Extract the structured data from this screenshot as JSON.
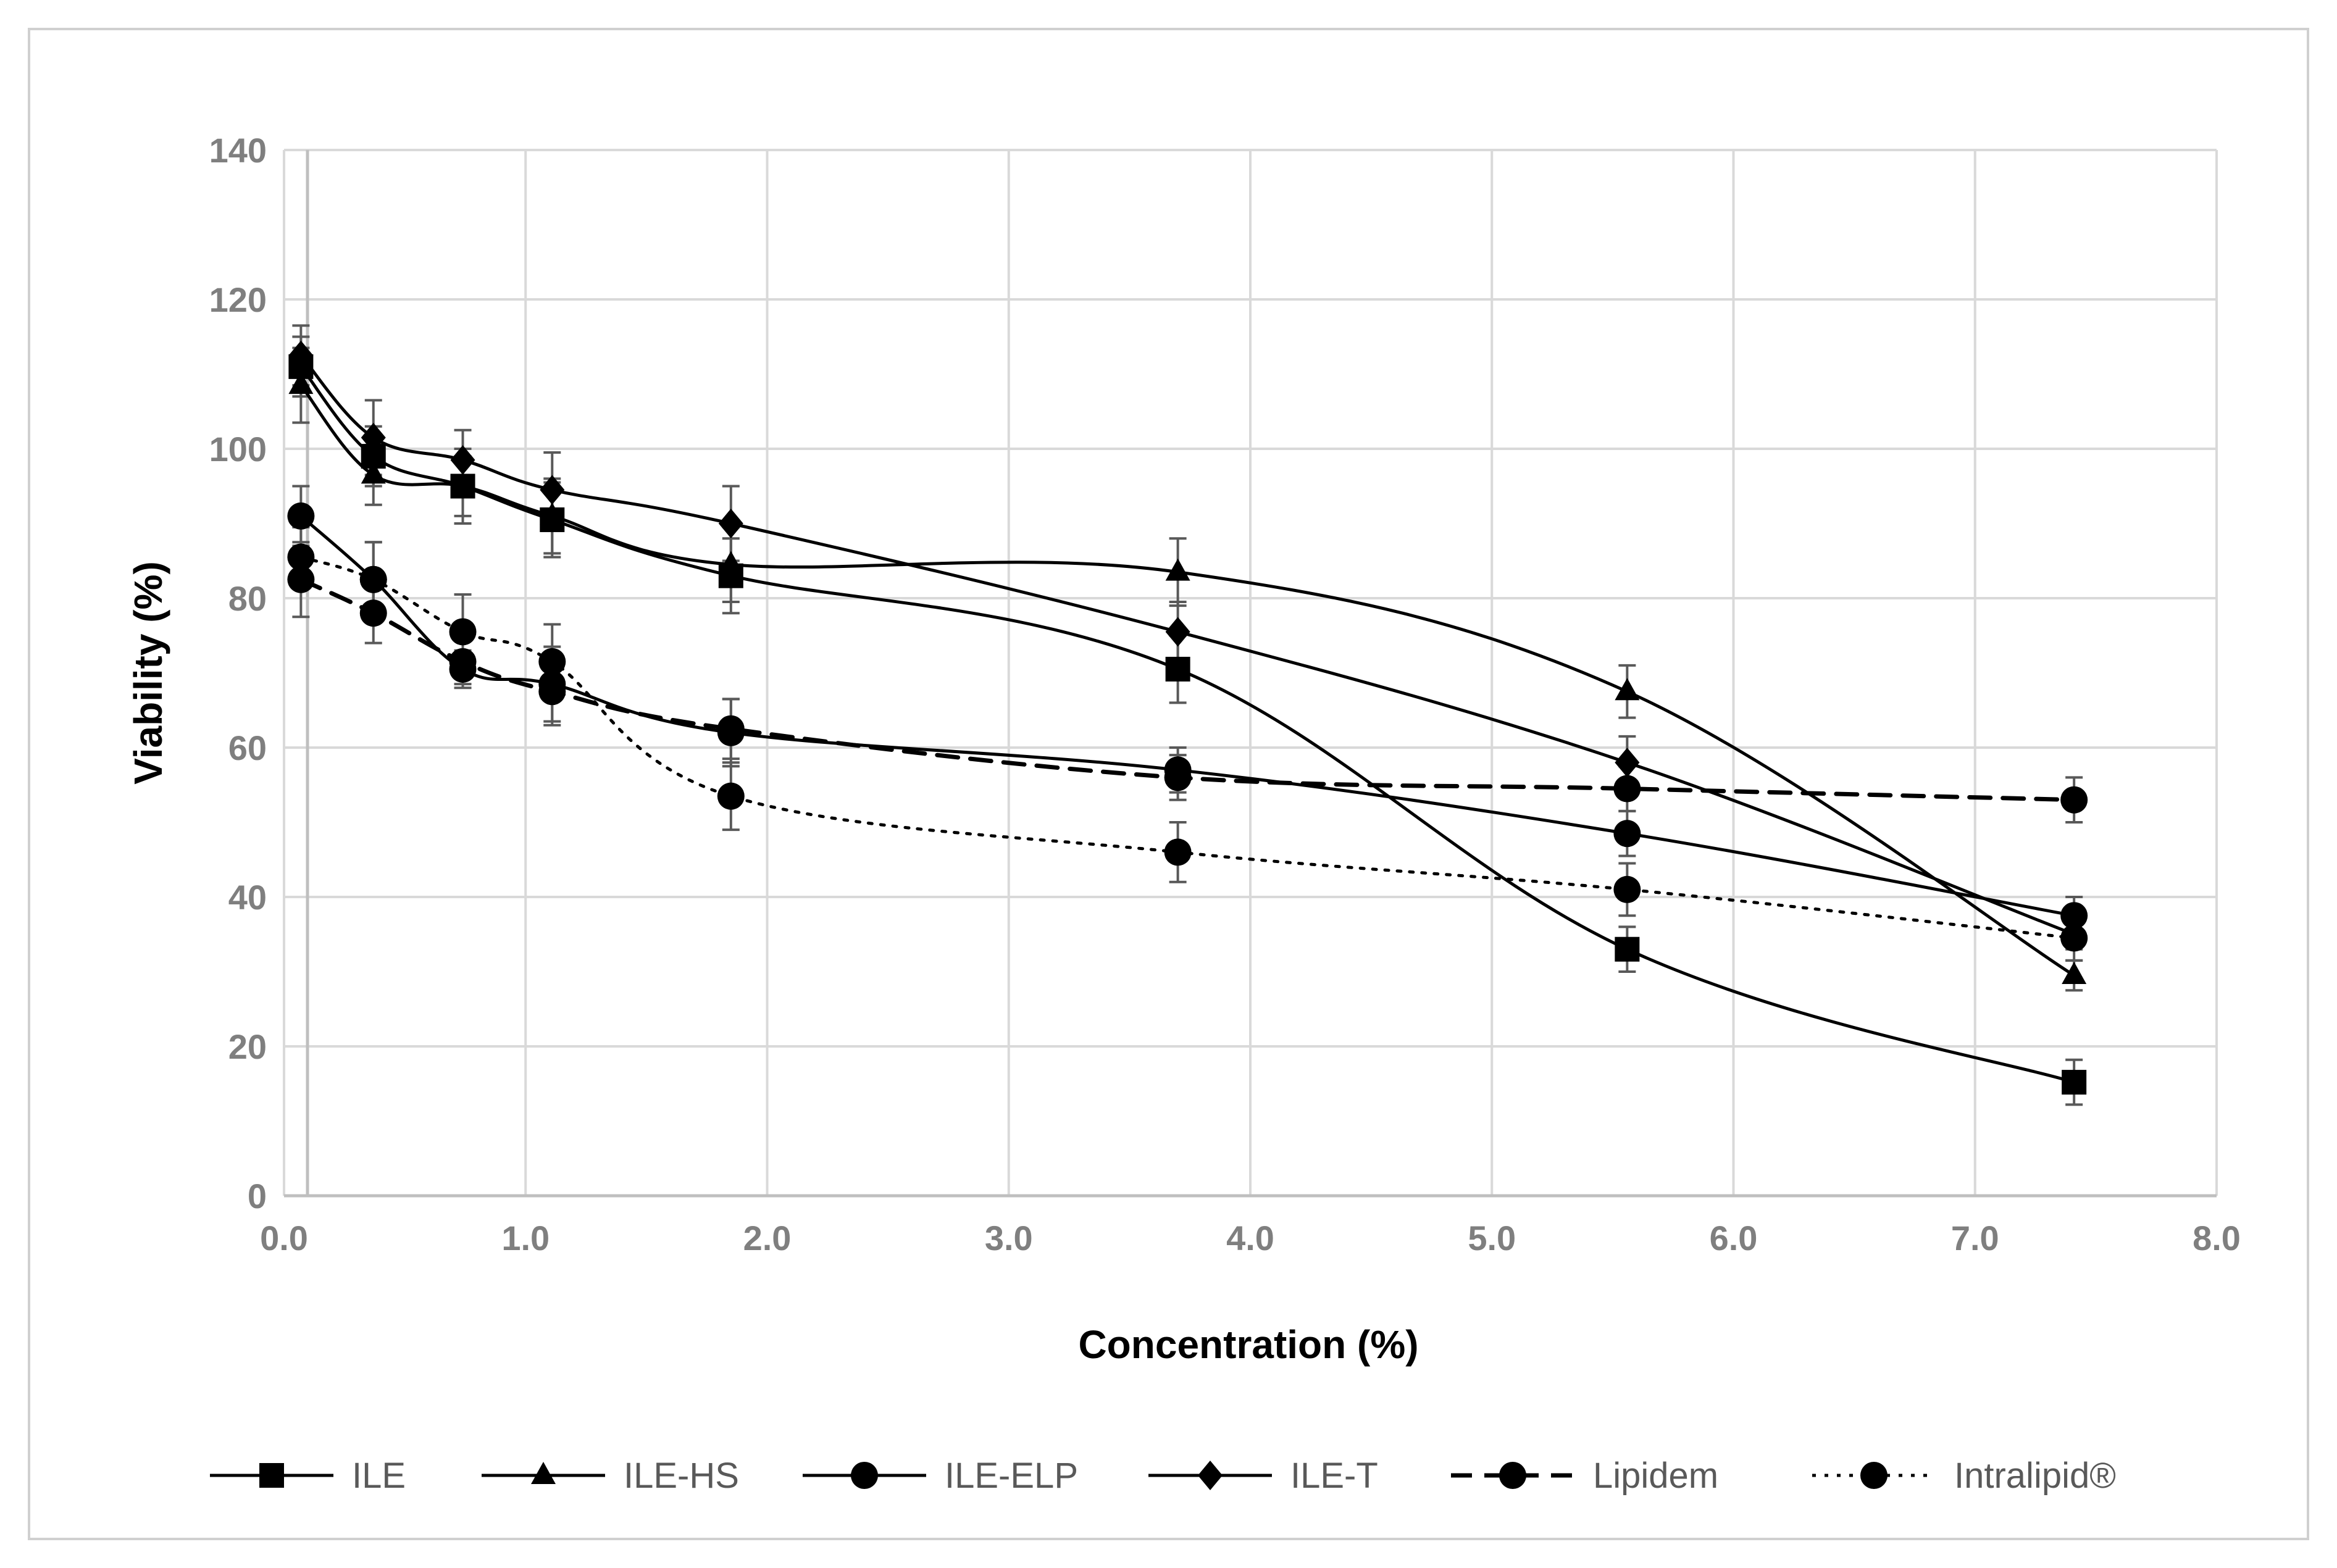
{
  "chart_data": {
    "type": "line",
    "title": "",
    "xlabel": "Concentration (%)",
    "ylabel": "Viability (%)",
    "xlim": [
      0,
      8
    ],
    "ylim": [
      0,
      140
    ],
    "x_ticks": [
      "0.0",
      "1.0",
      "2.0",
      "3.0",
      "4.0",
      "5.0",
      "6.0",
      "7.0",
      "8.0"
    ],
    "y_ticks": [
      "0",
      "20",
      "40",
      "60",
      "80",
      "100",
      "120",
      "140"
    ],
    "grid": true,
    "legend_position": "bottom",
    "x": [
      0.07,
      0.37,
      0.74,
      1.11,
      1.85,
      3.7,
      5.56,
      7.41
    ],
    "series": [
      {
        "name": "ILE",
        "marker": "square",
        "line": "solid",
        "values": [
          111,
          99,
          95,
          90.5,
          83,
          70.5,
          33,
          15.2
        ],
        "errors": [
          4,
          4,
          5,
          5,
          5,
          4.5,
          3,
          3
        ]
      },
      {
        "name": "ILE-HS",
        "marker": "triangle",
        "line": "solid",
        "values": [
          108.5,
          96.5,
          95,
          91,
          84.5,
          83.5,
          67.5,
          29.5
        ],
        "errors": [
          5,
          4,
          4,
          5,
          5,
          4.5,
          3.5,
          2
        ]
      },
      {
        "name": "ILE-ELP",
        "marker": "circle",
        "line": "solid",
        "values": [
          91,
          82.5,
          70.5,
          68.5,
          62,
          57,
          48.5,
          37.5
        ],
        "errors": [
          4,
          5,
          2.5,
          5,
          4.5,
          3,
          3,
          2.5
        ]
      },
      {
        "name": "ILE-T",
        "marker": "diamond",
        "line": "solid",
        "values": [
          112.5,
          101.5,
          98.5,
          94.5,
          90,
          75.5,
          58,
          35
        ],
        "errors": [
          4,
          5,
          4,
          5,
          5,
          4,
          3.5,
          2
        ]
      },
      {
        "name": "Lipidem",
        "marker": "circle",
        "line": "dashed",
        "values": [
          82.5,
          78,
          71.5,
          67.5,
          62.5,
          56,
          54.5,
          53
        ],
        "errors": [
          5,
          4,
          3,
          4.5,
          4,
          3,
          3,
          3
        ]
      },
      {
        "name": "Intralipid®",
        "marker": "circle",
        "line": "dotted",
        "values": [
          85.5,
          82.5,
          75.5,
          71.5,
          53.5,
          46,
          41,
          34.5
        ],
        "errors": [
          4,
          5,
          5,
          5,
          4.5,
          4,
          3.5,
          3
        ]
      }
    ]
  }
}
